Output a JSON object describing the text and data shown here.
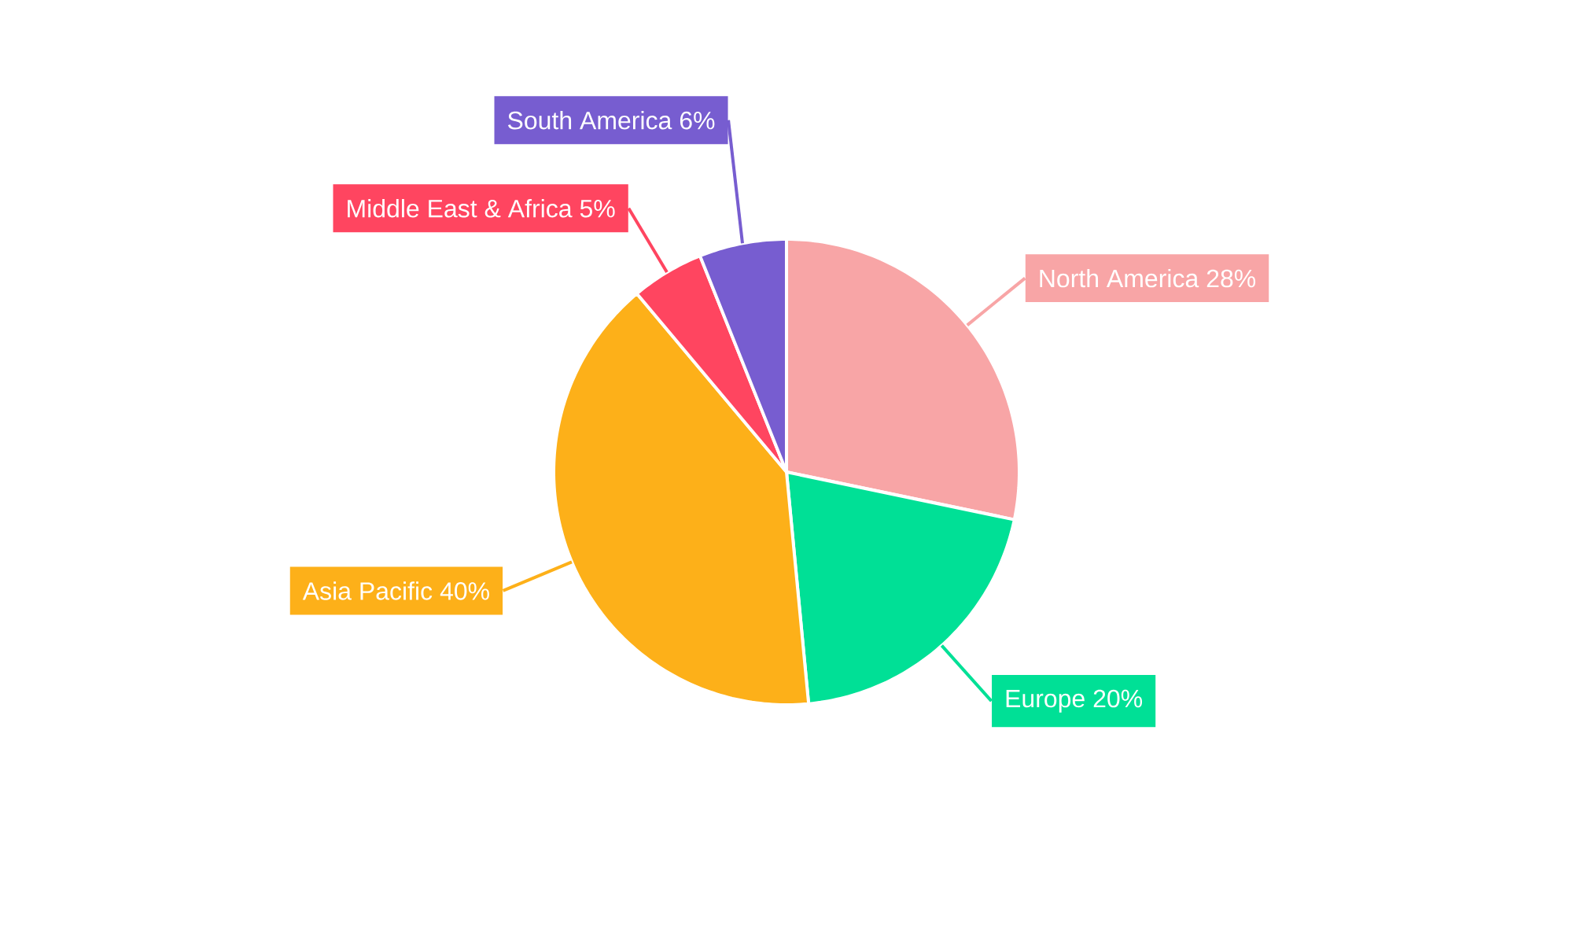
{
  "chart_data": {
    "type": "pie",
    "categories": [
      "North America",
      "Europe",
      "Asia Pacific",
      "Middle East & Africa",
      "South America"
    ],
    "values": [
      28,
      20,
      40,
      5,
      6
    ],
    "value_labels": [
      "28%",
      "20%",
      "40%",
      "5%",
      "6%"
    ],
    "colors": [
      "#f8a5a6",
      "#00e096",
      "#fdb019",
      "#ff4560",
      "#775dd0"
    ]
  }
}
